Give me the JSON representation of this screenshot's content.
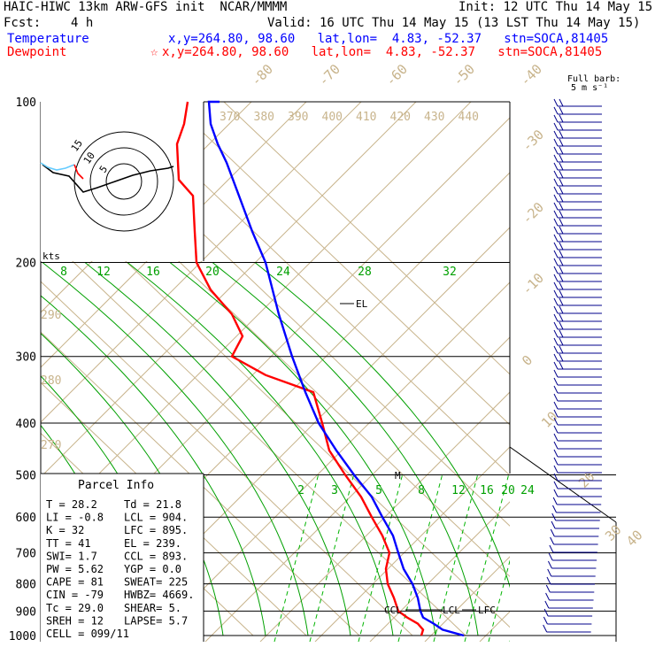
{
  "header": {
    "title": "HAIC-HIWC 13km ARW-GFS init  NCAR/MMMM",
    "init": "Init: 12 UTC Thu 14 May 15",
    "fcst_label": "Fcst:",
    "fcst_value": "4 h",
    "valid": "Valid: 16 UTC Thu 14 May 15 (13 LST Thu 14 May 15)",
    "temp_label": "Temperature",
    "temp_info": "x,y=264.80, 98.60   lat,lon=  4.83, -52.37   stn=SOCA,81405",
    "dew_label": "Dewpoint",
    "dew_star": "☆",
    "dew_info": "x,y=264.80, 98.60   lat,lon=  4.83, -52.37   stn=SOCA,81405",
    "barb_title_1": "Full barb:",
    "barb_title_2": "5 m s⁻¹"
  },
  "colors": {
    "temperature": "#0000ff",
    "dewpoint": "#ff0000",
    "isotherm": "#c8b48c",
    "mixing_ratio": "#00b400",
    "adiabat": "#00a000",
    "barb": "#00008b"
  },
  "chart_data": {
    "type": "line",
    "title": "HAIC-HIWC 13km ARW-GFS init  NCAR/MMMM",
    "y_axis": "pressure (hPa), log scale",
    "ylim": [
      1000,
      100
    ],
    "pressure_ticks": [
      "100",
      "200",
      "300",
      "400",
      "500",
      "600",
      "700",
      "800",
      "900",
      "1000"
    ],
    "isotherm_labels": [
      "-80",
      "-70",
      "-60",
      "-50",
      "-40",
      "-30",
      "-20",
      "-10",
      "0",
      "10",
      "20",
      "30",
      "40"
    ],
    "theta_labels": [
      "370",
      "380",
      "390",
      "400",
      "410",
      "420",
      "430",
      "440"
    ],
    "theta_left_labels": [
      "290",
      "280",
      "270"
    ],
    "mixing_ratio_labels_upper": [
      "8",
      "12",
      "16",
      "20",
      "24",
      "28",
      "32"
    ],
    "mixing_ratio_labels_lower": [
      "2",
      "3",
      "5",
      "8",
      "12",
      "16",
      "20",
      "24"
    ],
    "series": [
      {
        "name": "Temperature",
        "x": [
          524,
          500,
          490,
          478,
          475,
          472,
          466,
          456,
          450,
          444,
          432,
          420,
          400,
          380,
          360,
          345,
          330,
          315,
          300,
          285,
          270,
          256,
          246,
          238,
          236,
          238,
          248
        ],
        "y": [
          1000,
          975,
          950,
          925,
          900,
          850,
          800,
          750,
          700,
          650,
          600,
          550,
          500,
          450,
          400,
          350,
          300,
          250,
          200,
          175,
          150,
          130,
          120,
          110,
          100,
          100,
          100
        ],
        "values_are_pixel_mapped": false
      },
      {
        "name": "Dewpoint",
        "x": [
          476,
          478,
          472,
          460,
          450,
          445,
          438,
          436,
          440,
          432,
          420,
          408,
          390,
          372,
          364,
          354,
          300,
          262,
          274,
          262,
          238,
          222,
          220,
          218,
          202,
          200,
          208,
          212
        ],
        "y": [
          1000,
          975,
          950,
          925,
          900,
          850,
          800,
          750,
          700,
          650,
          600,
          550,
          500,
          450,
          400,
          350,
          325,
          300,
          275,
          250,
          225,
          200,
          175,
          150,
          140,
          120,
          110,
          100
        ]
      }
    ],
    "annotations": [
      "EL",
      "M",
      "CCL",
      "LCL",
      "LFC"
    ],
    "inset_hodograph": {
      "ring_labels": [
        "5",
        "10",
        "15"
      ],
      "units": "kts"
    }
  },
  "parcel": {
    "title": "Parcel Info",
    "rows": [
      [
        "T  =   28.2",
        "Td =  21.8"
      ],
      [
        "LI =   -0.8",
        "LCL =  904."
      ],
      [
        "K  =     32",
        "LFC =  895."
      ],
      [
        "TT =     41",
        "EL  =  239."
      ],
      [
        "SWI=    1.7",
        "CCL =  893."
      ],
      [
        "PW =   5.62",
        "YGP =   0.0"
      ],
      [
        "CAPE =   81",
        "SWEAT=  225"
      ],
      [
        "CIN =   -79",
        "HWBZ= 4669."
      ],
      [
        "Tc = 29.0",
        "SHEAR=   5."
      ],
      [
        "SREH =   12",
        "LAPSE=  5.7"
      ],
      [
        "CELL = 099/11",
        ""
      ]
    ]
  }
}
